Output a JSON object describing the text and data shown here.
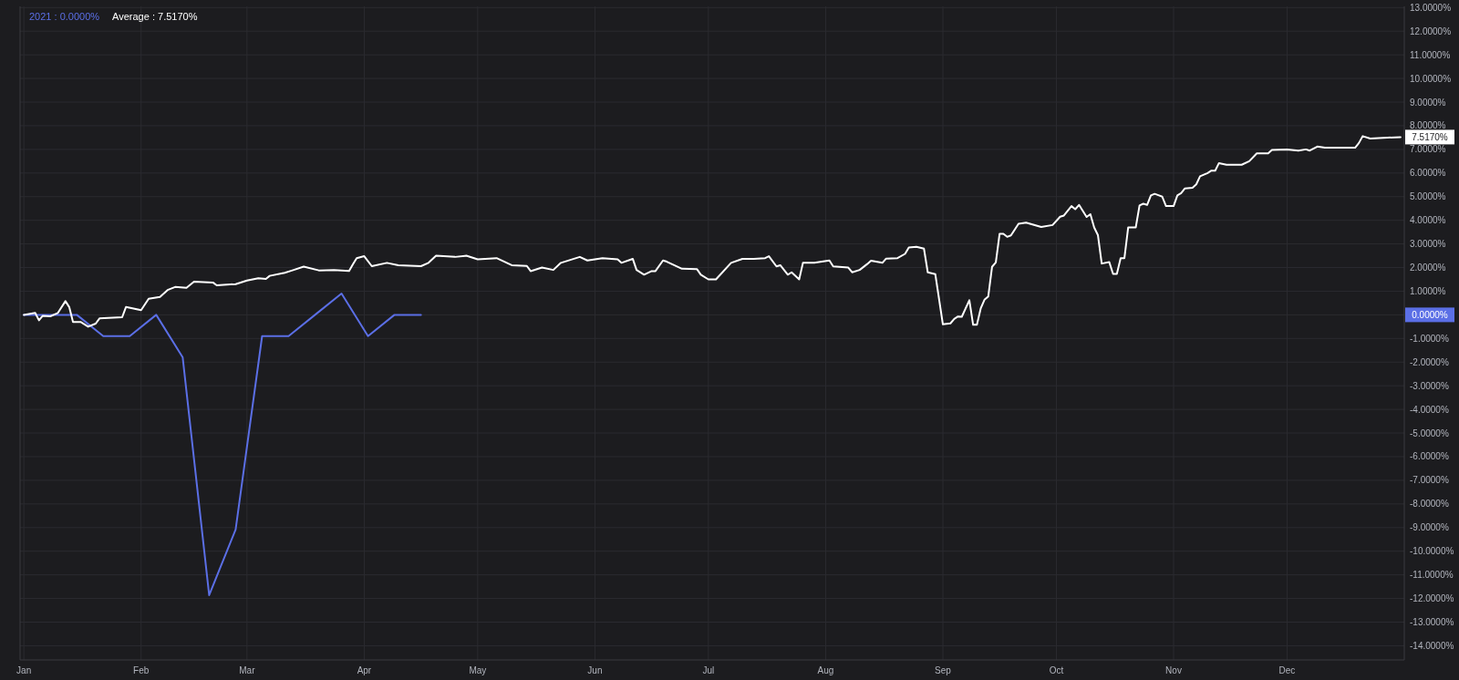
{
  "chart_data": {
    "type": "line",
    "xlim": [
      "2020-12-31",
      "2022-01-01"
    ],
    "xticks": [
      {
        "value": "2021-01-01",
        "label": "Jan"
      },
      {
        "value": "2021-02-01",
        "label": "Feb"
      },
      {
        "value": "2021-03-01",
        "label": "Mar"
      },
      {
        "value": "2021-04-01",
        "label": "Apr"
      },
      {
        "value": "2021-05-01",
        "label": "May"
      },
      {
        "value": "2021-06-01",
        "label": "Jun"
      },
      {
        "value": "2021-07-01",
        "label": "Jul"
      },
      {
        "value": "2021-08-01",
        "label": "Aug"
      },
      {
        "value": "2021-09-01",
        "label": "Sep"
      },
      {
        "value": "2021-10-01",
        "label": "Oct"
      },
      {
        "value": "2021-11-01",
        "label": "Nov"
      },
      {
        "value": "2021-12-01",
        "label": "Dec"
      }
    ],
    "ylim": [
      -14.6,
      13.05
    ],
    "yticks": [
      {
        "value": -14,
        "label": "-14.0000%"
      },
      {
        "value": -13,
        "label": "-13.0000%"
      },
      {
        "value": -12,
        "label": "-12.0000%"
      },
      {
        "value": -11,
        "label": "-11.0000%"
      },
      {
        "value": -10,
        "label": "-10.0000%"
      },
      {
        "value": -9,
        "label": "-9.0000%"
      },
      {
        "value": -8,
        "label": "-8.0000%"
      },
      {
        "value": -7,
        "label": "-7.0000%"
      },
      {
        "value": -6,
        "label": "-6.0000%"
      },
      {
        "value": -5,
        "label": "-5.0000%"
      },
      {
        "value": -4,
        "label": "-4.0000%"
      },
      {
        "value": -3,
        "label": "-3.0000%"
      },
      {
        "value": -2,
        "label": "-2.0000%"
      },
      {
        "value": -1,
        "label": "-1.0000%"
      },
      {
        "value": 0,
        "label": null
      },
      {
        "value": 1,
        "label": "1.0000%"
      },
      {
        "value": 2,
        "label": "2.0000%"
      },
      {
        "value": 3,
        "label": "3.0000%"
      },
      {
        "value": 4,
        "label": "4.0000%"
      },
      {
        "value": 5,
        "label": "5.0000%"
      },
      {
        "value": 6,
        "label": "6.0000%"
      },
      {
        "value": 7,
        "label": "7.0000%"
      },
      {
        "value": 8,
        "label": "8.0000%"
      },
      {
        "value": 9,
        "label": "9.0000%"
      },
      {
        "value": 10,
        "label": "10.0000%"
      },
      {
        "value": 11,
        "label": "11.0000%"
      },
      {
        "value": 12,
        "label": "12.0000%"
      },
      {
        "value": 13,
        "label": "13.0000%"
      }
    ],
    "grid": true,
    "legend": "top left",
    "marker": "none",
    "annotations": [
      "0.0000%",
      "7.5170%"
    ],
    "series": [
      {
        "name": "2021 : 0.0000%",
        "color": "#5b6fe6",
        "x": [
          "2021-01-01",
          "2021-01-08",
          "2021-01-15",
          "2021-01-22",
          "2021-01-29",
          "2021-02-05",
          "2021-02-12",
          "2021-02-19",
          "2021-02-26",
          "2021-03-05",
          "2021-03-12",
          "2021-03-19",
          "2021-03-26",
          "2021-04-02",
          "2021-04-09",
          "2021-04-16"
        ],
        "values": [
          0,
          0,
          0,
          -0.9,
          -0.9,
          0,
          -1.8,
          -11.86,
          -9.08,
          -0.9,
          -0.9,
          0,
          0.9,
          -0.9,
          0,
          0
        ]
      },
      {
        "name": "Average : 7.5170%",
        "color": "#ffffff",
        "x": [
          "2021-01-01",
          "2021-01-04",
          "2021-01-05",
          "2021-01-06",
          "2021-01-08",
          "2021-01-10",
          "2021-01-12",
          "2021-01-13",
          "2021-01-14",
          "2021-01-16",
          "2021-01-18",
          "2021-01-20",
          "2021-01-21",
          "2021-01-27",
          "2021-01-28",
          "2021-01-30",
          "2021-02-01",
          "2021-02-03",
          "2021-02-06",
          "2021-02-08",
          "2021-02-10",
          "2021-02-13",
          "2021-02-15",
          "2021-02-20",
          "2021-02-21",
          "2021-02-26",
          "2021-03-01",
          "2021-03-04",
          "2021-03-06",
          "2021-03-07",
          "2021-03-11",
          "2021-03-13",
          "2021-03-16",
          "2021-03-20",
          "2021-03-24",
          "2021-03-28",
          "2021-03-29",
          "2021-03-30",
          "2021-04-01",
          "2021-04-03",
          "2021-04-07",
          "2021-04-10",
          "2021-04-16",
          "2021-04-18",
          "2021-04-20",
          "2021-04-25",
          "2021-04-28",
          "2021-05-01",
          "2021-05-06",
          "2021-05-10",
          "2021-05-14",
          "2021-05-15",
          "2021-05-18",
          "2021-05-21",
          "2021-05-23",
          "2021-05-28",
          "2021-05-30",
          "2021-06-03",
          "2021-06-07",
          "2021-06-08",
          "2021-06-11",
          "2021-06-12",
          "2021-06-14",
          "2021-06-16",
          "2021-06-17",
          "2021-06-19",
          "2021-06-20",
          "2021-06-24",
          "2021-06-28",
          "2021-06-29",
          "2021-07-01",
          "2021-07-03",
          "2021-07-07",
          "2021-07-10",
          "2021-07-13",
          "2021-07-16",
          "2021-07-17",
          "2021-07-19",
          "2021-07-20",
          "2021-07-22",
          "2021-07-23",
          "2021-07-25",
          "2021-07-26",
          "2021-07-29",
          "2021-08-02",
          "2021-08-03",
          "2021-08-07",
          "2021-08-08",
          "2021-08-10",
          "2021-08-12",
          "2021-08-13",
          "2021-08-16",
          "2021-08-17",
          "2021-08-20",
          "2021-08-22",
          "2021-08-23",
          "2021-08-25",
          "2021-08-27",
          "2021-08-28",
          "2021-08-30",
          "2021-09-01",
          "2021-09-03",
          "2021-09-04",
          "2021-09-05",
          "2021-09-06",
          "2021-09-08",
          "2021-09-09",
          "2021-09-10",
          "2021-09-11",
          "2021-09-12",
          "2021-09-13",
          "2021-09-14",
          "2021-09-15",
          "2021-09-16",
          "2021-09-17",
          "2021-09-18",
          "2021-09-19",
          "2021-09-21",
          "2021-09-23",
          "2021-09-27",
          "2021-09-30",
          "2021-10-02",
          "2021-10-03",
          "2021-10-05",
          "2021-10-06",
          "2021-10-07",
          "2021-10-09",
          "2021-10-10",
          "2021-10-11",
          "2021-10-12",
          "2021-10-13",
          "2021-10-15",
          "2021-10-16",
          "2021-10-17",
          "2021-10-18",
          "2021-10-19",
          "2021-10-20",
          "2021-10-22",
          "2021-10-23",
          "2021-10-24",
          "2021-10-25",
          "2021-10-26",
          "2021-10-27",
          "2021-10-29",
          "2021-10-30",
          "2021-11-01",
          "2021-11-02",
          "2021-11-03",
          "2021-11-04",
          "2021-11-06",
          "2021-11-07",
          "2021-11-08",
          "2021-11-10",
          "2021-11-11",
          "2021-11-12",
          "2021-11-13",
          "2021-11-15",
          "2021-11-19",
          "2021-11-21",
          "2021-11-23",
          "2021-11-26",
          "2021-11-27",
          "2021-12-01",
          "2021-12-04",
          "2021-12-06",
          "2021-12-07",
          "2021-12-09",
          "2021-12-11",
          "2021-12-13",
          "2021-12-19",
          "2021-12-20",
          "2021-12-21",
          "2021-12-23",
          "2021-12-31"
        ],
        "values": [
          0,
          0.08,
          -0.23,
          -0.04,
          -0.06,
          0.08,
          0.58,
          0.33,
          -0.3,
          -0.3,
          -0.5,
          -0.37,
          -0.15,
          -0.1,
          0.33,
          0.27,
          0.2,
          0.68,
          0.76,
          1.05,
          1.18,
          1.14,
          1.4,
          1.37,
          1.25,
          1.3,
          1.45,
          1.55,
          1.52,
          1.65,
          1.78,
          1.88,
          2.04,
          1.88,
          1.9,
          1.86,
          2.14,
          2.4,
          2.48,
          2.06,
          2.2,
          2.1,
          2.06,
          2.2,
          2.5,
          2.45,
          2.5,
          2.35,
          2.4,
          2.1,
          2.07,
          1.85,
          2.0,
          1.9,
          2.2,
          2.45,
          2.3,
          2.4,
          2.35,
          2.2,
          2.37,
          1.9,
          1.7,
          1.85,
          1.85,
          2.3,
          2.25,
          1.95,
          1.93,
          1.7,
          1.5,
          1.5,
          2.2,
          2.37,
          2.37,
          2.4,
          2.48,
          2.05,
          2.1,
          1.7,
          1.8,
          1.5,
          2.2,
          2.2,
          2.3,
          2.05,
          2.0,
          1.8,
          1.9,
          2.15,
          2.29,
          2.2,
          2.38,
          2.4,
          2.58,
          2.85,
          2.88,
          2.8,
          1.8,
          1.72,
          -0.4,
          -0.36,
          -0.17,
          -0.07,
          -0.08,
          0.62,
          -0.42,
          -0.42,
          0.27,
          0.64,
          0.78,
          2.03,
          2.22,
          3.43,
          3.43,
          3.3,
          3.36,
          3.85,
          3.9,
          3.72,
          3.8,
          4.15,
          4.2,
          4.6,
          4.47,
          4.65,
          4.14,
          4.26,
          3.7,
          3.37,
          2.17,
          2.23,
          1.73,
          1.73,
          2.4,
          2.4,
          3.7,
          3.7,
          4.63,
          4.7,
          4.65,
          5.05,
          5.12,
          5.0,
          4.6,
          4.6,
          5.05,
          5.15,
          5.35,
          5.38,
          5.52,
          5.86,
          6.0,
          6.1,
          6.1,
          6.42,
          6.35,
          6.35,
          6.5,
          6.83,
          6.83,
          6.98,
          7.0,
          6.95,
          7.0,
          6.95,
          7.12,
          7.07,
          7.07,
          7.07,
          7.27,
          7.56,
          7.46,
          7.52
        ]
      }
    ]
  }
}
